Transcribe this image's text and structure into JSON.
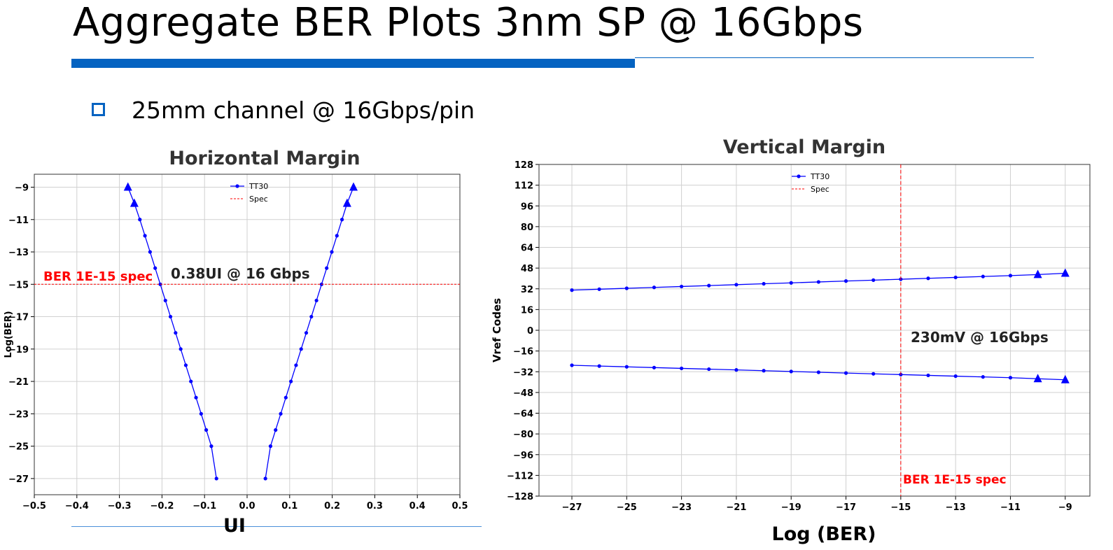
{
  "slide": {
    "title": "Aggregate BER Plots 3nm SP @ 16Gbps",
    "bullet": "25mm channel @ 16Gbps/pin",
    "accent_color": "#0563c1"
  },
  "chart_data": [
    {
      "type": "line",
      "title": "Horizontal Margin",
      "xlabel": "UI",
      "ylabel": "Log(BER)",
      "xlim": [
        -0.5,
        0.5
      ],
      "ylim": [
        -28,
        -8.2
      ],
      "xticks": [
        "-0.5",
        "-0.4",
        "-0.3",
        "-0.2",
        "-0.1",
        "0.0",
        "0.1",
        "0.2",
        "0.3",
        "0.4",
        "0.5"
      ],
      "yticks": [
        "-9",
        "-11",
        "-13",
        "-15",
        "-17",
        "-19",
        "-21",
        "-23",
        "-25",
        "-27"
      ],
      "grid": true,
      "legend_position": "top-center",
      "legend": [
        "TT30",
        "Spec"
      ],
      "series": [
        {
          "name": "TT30",
          "color": "#0000ff",
          "branches": [
            {
              "x": [
                -0.28,
                -0.265,
                -0.252,
                -0.24,
                -0.228,
                -0.216,
                -0.204,
                -0.192,
                -0.18,
                -0.168,
                -0.156,
                -0.144,
                -0.132,
                -0.12,
                -0.108,
                -0.096,
                -0.084,
                -0.072
              ],
              "y": [
                -9,
                -10,
                -11,
                -12,
                -13,
                -14,
                -15,
                -16,
                -17,
                -18,
                -19,
                -20,
                -21,
                -22,
                -23,
                -24,
                -25,
                -27
              ]
            },
            {
              "x": [
                0.043,
                0.055,
                0.067,
                0.079,
                0.091,
                0.103,
                0.115,
                0.127,
                0.139,
                0.151,
                0.163,
                0.175,
                0.187,
                0.199,
                0.211,
                0.223,
                0.235,
                0.25
              ],
              "y": [
                -27,
                -25,
                -24,
                -23,
                -22,
                -21,
                -20,
                -19,
                -18,
                -17,
                -16,
                -15,
                -14,
                -13,
                -12,
                -11,
                -10,
                -9
              ]
            }
          ],
          "triangle_markers": [
            {
              "x": -0.28,
              "y": -9
            },
            {
              "x": -0.265,
              "y": -10
            },
            {
              "x": 0.235,
              "y": -10
            },
            {
              "x": 0.25,
              "y": -9
            }
          ]
        },
        {
          "name": "Spec",
          "color": "#ff0000",
          "style": "dashed",
          "y": -15
        }
      ],
      "annotations": [
        {
          "text": "BER 1E-15 spec",
          "color": "#ff0000"
        },
        {
          "text": "0.38UI @ 16 Gbps",
          "color": "#222222"
        }
      ]
    },
    {
      "type": "line",
      "title": "Vertical Margin",
      "xlabel": "Log (BER)",
      "ylabel": "Vref Codes",
      "xlim": [
        -28.2,
        -8.1
      ],
      "ylim": [
        -128,
        128
      ],
      "xticks": [
        "-27",
        "-25",
        "-23",
        "-21",
        "-19",
        "-17",
        "-15",
        "-13",
        "-11",
        "-9"
      ],
      "yticks": [
        "128",
        "112",
        "96",
        "80",
        "64",
        "48",
        "32",
        "16",
        "0",
        "-16",
        "-32",
        "-48",
        "-64",
        "-80",
        "-96",
        "-112",
        "-128"
      ],
      "grid": true,
      "legend_position": "top-center",
      "legend": [
        "TT30",
        "Spec"
      ],
      "series": [
        {
          "name": "TT30",
          "color": "#0000ff",
          "branches": [
            {
              "x": [
                -27,
                -26,
                -25,
                -24,
                -23,
                -22,
                -21,
                -20,
                -19,
                -18,
                -17,
                -16,
                -15,
                -14,
                -13,
                -12,
                -11,
                -10,
                -9
              ],
              "y": [
                31,
                31.7,
                32.4,
                33.1,
                33.8,
                34.5,
                35.2,
                35.9,
                36.6,
                37.3,
                38,
                38.7,
                39.4,
                40.1,
                40.8,
                41.5,
                42.2,
                43,
                44
              ]
            },
            {
              "x": [
                -27,
                -26,
                -25,
                -24,
                -23,
                -22,
                -21,
                -20,
                -19,
                -18,
                -17,
                -16,
                -15,
                -14,
                -13,
                -12,
                -11,
                -10,
                -9
              ],
              "y": [
                -27,
                -27.6,
                -28.2,
                -28.8,
                -29.4,
                -30,
                -30.6,
                -31.2,
                -31.8,
                -32.4,
                -33,
                -33.6,
                -34.2,
                -34.8,
                -35.4,
                -36,
                -36.6,
                -37.4,
                -38.2
              ]
            }
          ],
          "triangle_markers": [
            {
              "x": -10,
              "y": 43
            },
            {
              "x": -9,
              "y": 44
            },
            {
              "x": -10,
              "y": -37.4
            },
            {
              "x": -9,
              "y": -38.2
            }
          ]
        },
        {
          "name": "Spec",
          "color": "#ff0000",
          "style": "dashed",
          "x": -15
        }
      ],
      "annotations": [
        {
          "text": "230mV @ 16Gbps",
          "color": "#222222"
        },
        {
          "text": "BER 1E-15 spec",
          "color": "#ff0000"
        }
      ]
    }
  ]
}
